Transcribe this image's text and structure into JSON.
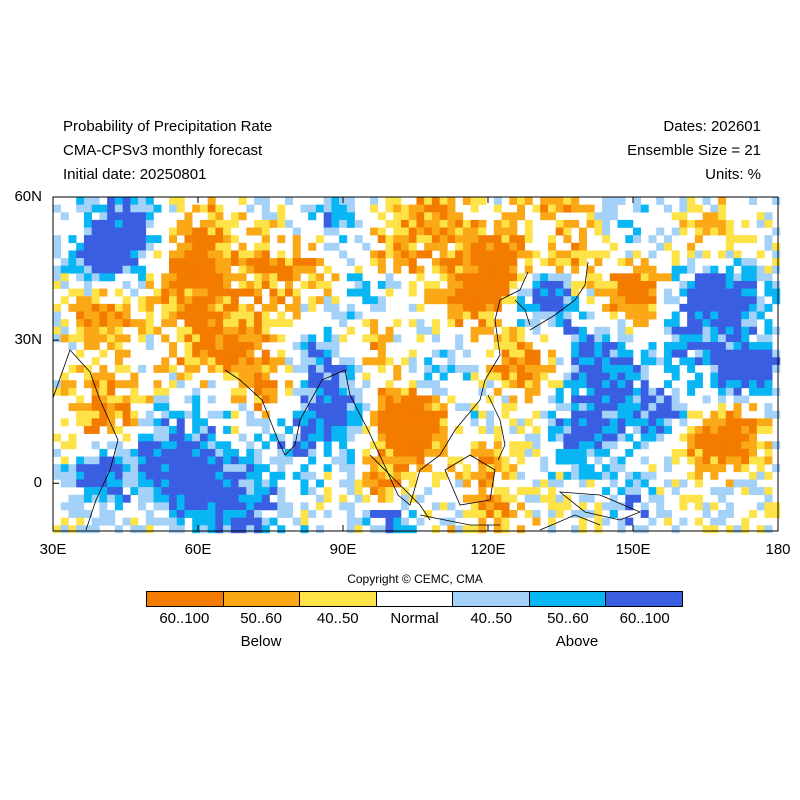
{
  "header": {
    "title": "Probability of Precipitation Rate",
    "model": "CMA-CPSv3 monthly forecast",
    "initial_date": "Initial date: 20250801",
    "dates": "Dates: 202601",
    "ensemble": "Ensemble Size = 21",
    "units": "Units: %"
  },
  "map": {
    "lon_range": [
      30,
      180
    ],
    "lat_range": [
      -10,
      60
    ],
    "y_ticks": [
      {
        "value": 60,
        "label": "60N"
      },
      {
        "value": 30,
        "label": "30N"
      },
      {
        "value": 0,
        "label": "0"
      }
    ],
    "x_ticks": [
      {
        "value": 30,
        "label": "30E"
      },
      {
        "value": 60,
        "label": "60E"
      },
      {
        "value": 90,
        "label": "90E"
      },
      {
        "value": 120,
        "label": "120E"
      },
      {
        "value": 150,
        "label": "150E"
      },
      {
        "value": 180,
        "label": "180"
      }
    ]
  },
  "copyright": "Copyright © CEMC, CMA",
  "legend": {
    "bins": [
      {
        "label": "60..100",
        "color": "#f37b00"
      },
      {
        "label": "50..60",
        "color": "#fba817"
      },
      {
        "label": "40..50",
        "color": "#fde347"
      },
      {
        "label": "Normal",
        "color": "#ffffff"
      },
      {
        "label": "40..50",
        "color": "#a4d1f7"
      },
      {
        "label": "50..60",
        "color": "#08b6f3"
      },
      {
        "label": "60..100",
        "color": "#3a5ee1"
      }
    ],
    "below_label": "Below",
    "above_label": "Above"
  }
}
